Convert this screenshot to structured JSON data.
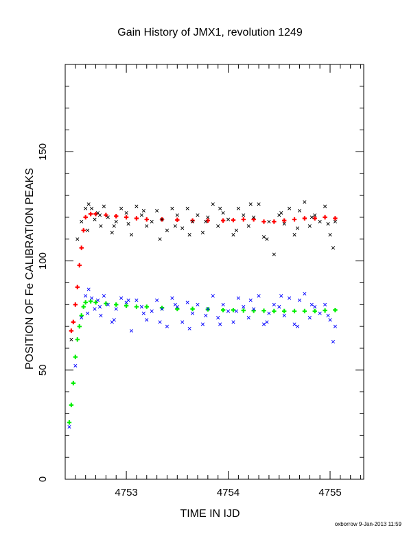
{
  "chart_data": {
    "type": "scatter",
    "title": "Gain History of JMX1, revolution 1249",
    "xlabel": "TIME IN IJD",
    "ylabel": "POSITION OF Fe CALIBRATION PEAKS",
    "xlim": [
      4752.4,
      4755.33
    ],
    "ylim": [
      0,
      190
    ],
    "xticks": [
      {
        "value": 4753,
        "label": "4753"
      },
      {
        "value": 4754,
        "label": "4754"
      },
      {
        "value": 4755,
        "label": "4755"
      }
    ],
    "yticks": [
      {
        "value": 0,
        "label": "0"
      },
      {
        "value": 50,
        "label": "50"
      },
      {
        "value": 100,
        "label": "100"
      },
      {
        "value": 150,
        "label": "150"
      }
    ],
    "grid": false,
    "legend": "none",
    "series": [
      {
        "color": "#ff0000",
        "marker": "+",
        "x": [
          4752.46,
          4752.48,
          4752.5,
          4752.52,
          4752.54,
          4752.56,
          4752.58,
          4752.6,
          4752.65,
          4752.7,
          4752.8,
          4752.9,
          4753.0,
          4753.1,
          4753.2,
          4753.35,
          4753.5,
          4753.65,
          4753.8,
          4753.95,
          4754.05,
          4754.15,
          4754.25,
          4754.35,
          4754.45,
          4754.55,
          4754.65,
          4754.75,
          4754.85,
          4754.95,
          4755.05
        ],
        "y": [
          68,
          72,
          80,
          88,
          98,
          106,
          114,
          120,
          121.5,
          121.5,
          121,
          120.5,
          120,
          119.5,
          119,
          119,
          118.8,
          118.5,
          118.5,
          118.5,
          118.7,
          119,
          119,
          118,
          118,
          118.5,
          119,
          119.5,
          119.5,
          120,
          119.5
        ]
      },
      {
        "color": "#00ee00",
        "marker": "+",
        "x": [
          4752.44,
          4752.46,
          4752.48,
          4752.5,
          4752.52,
          4752.54,
          4752.56,
          4752.58,
          4752.6,
          4752.65,
          4752.7,
          4752.8,
          4752.9,
          4753.0,
          4753.1,
          4753.2,
          4753.35,
          4753.5,
          4753.65,
          4753.8,
          4753.95,
          4754.05,
          4754.15,
          4754.25,
          4754.35,
          4754.45,
          4754.55,
          4754.65,
          4754.75,
          4754.85,
          4754.95,
          4755.05
        ],
        "y": [
          26,
          34,
          44,
          56,
          64,
          70,
          75,
          79,
          81,
          81.5,
          81,
          80.5,
          80,
          79.5,
          79,
          79,
          78.5,
          78,
          78,
          77.8,
          77.5,
          77.5,
          77.3,
          77.2,
          77.2,
          77,
          77,
          77,
          77,
          77,
          77.3,
          77.5
        ]
      },
      {
        "color": "#000000",
        "marker": "x",
        "x": [
          4752.46,
          4752.52,
          4752.56,
          4752.6,
          4752.63,
          4752.66,
          4752.69,
          4752.72,
          4752.75,
          4752.78,
          4752.82,
          4752.86,
          4752.9,
          4752.95,
          4753.0,
          4753.05,
          4753.1,
          4753.15,
          4753.2,
          4753.25,
          4753.3,
          4753.35,
          4753.4,
          4753.45,
          4753.5,
          4753.55,
          4753.6,
          4753.65,
          4753.7,
          4753.75,
          4753.8,
          4753.85,
          4753.9,
          4753.95,
          4754.0,
          4754.05,
          4754.1,
          4754.15,
          4754.2,
          4754.25,
          4754.3,
          4754.35,
          4754.4,
          4754.45,
          4754.5,
          4754.55,
          4754.6,
          4754.65,
          4754.7,
          4754.75,
          4754.8,
          4754.85,
          4754.9,
          4754.95,
          4755.0,
          4755.03,
          4755.05,
          4752.62,
          4752.74,
          4752.88,
          4753.02,
          4753.17,
          4753.33,
          4753.48,
          4753.62,
          4753.78,
          4753.92,
          4754.08,
          4754.22,
          4754.38,
          4754.52,
          4754.68,
          4754.82,
          4754.98
        ],
        "y": [
          64,
          110,
          118,
          124,
          126,
          124,
          119,
          122,
          116,
          125,
          120,
          113,
          118,
          124,
          122,
          112,
          125,
          121,
          116,
          118,
          123,
          119,
          114,
          124,
          121,
          115,
          124,
          118,
          121,
          113,
          120,
          126,
          116,
          122,
          119,
          112,
          124,
          121,
          116,
          120,
          126,
          111,
          118,
          103,
          121,
          117,
          124,
          112,
          123,
          127,
          116,
          121,
          118,
          125,
          112,
          106,
          118,
          114,
          121,
          116,
          117,
          123,
          110,
          116,
          112,
          118,
          124,
          114,
          126,
          110,
          122,
          115,
          120,
          117
        ]
      },
      {
        "color": "#0000ff",
        "marker": "x",
        "x": [
          4752.44,
          4752.5,
          4752.56,
          4752.6,
          4752.63,
          4752.66,
          4752.69,
          4752.72,
          4752.75,
          4752.78,
          4752.82,
          4752.86,
          4752.9,
          4752.95,
          4753.0,
          4753.05,
          4753.1,
          4753.15,
          4753.2,
          4753.25,
          4753.3,
          4753.35,
          4753.4,
          4753.45,
          4753.5,
          4753.55,
          4753.6,
          4753.65,
          4753.7,
          4753.75,
          4753.8,
          4753.85,
          4753.9,
          4753.95,
          4754.0,
          4754.05,
          4754.1,
          4754.15,
          4754.2,
          4754.25,
          4754.3,
          4754.35,
          4754.4,
          4754.45,
          4754.5,
          4754.55,
          4754.6,
          4754.65,
          4754.7,
          4754.75,
          4754.8,
          4754.85,
          4754.9,
          4754.95,
          4755.0,
          4755.03,
          4755.05,
          4752.62,
          4752.74,
          4752.88,
          4753.02,
          4753.17,
          4753.33,
          4753.48,
          4753.62,
          4753.78,
          4753.92,
          4754.08,
          4754.22,
          4754.38,
          4754.52,
          4754.68,
          4754.82,
          4754.98
        ],
        "y": [
          24,
          52,
          74,
          84,
          87,
          83,
          78,
          82,
          75,
          84,
          80,
          72,
          78,
          83,
          81,
          68,
          82,
          79,
          73,
          77,
          82,
          78,
          70,
          83,
          79,
          72,
          81,
          76,
          80,
          71,
          78,
          84,
          74,
          80,
          77,
          72,
          83,
          79,
          74,
          78,
          84,
          71,
          76,
          80,
          79,
          75,
          83,
          71,
          82,
          85,
          74,
          79,
          76,
          80,
          73,
          63,
          70,
          76,
          79,
          73,
          82,
          76,
          72,
          80,
          69,
          75,
          71,
          77,
          82,
          72,
          84,
          70,
          80,
          75
        ]
      }
    ]
  },
  "footer": {
    "text": "oxborrow  9-Jan-2013 11:59"
  }
}
